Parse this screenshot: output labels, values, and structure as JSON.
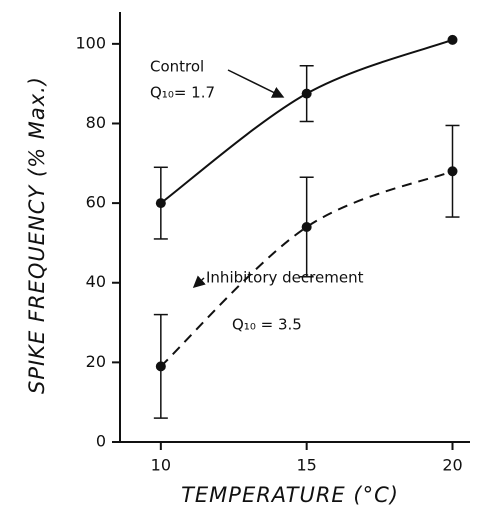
{
  "chart_data": {
    "type": "line",
    "x_label": "TEMPERATURE (°C)",
    "y_label": "SPIKE FREQUENCY (% Max.)",
    "x": [
      10,
      15,
      20
    ],
    "series": [
      {
        "name": "Control",
        "q10_label": "Q₁₀= 1.7",
        "color": "#111111",
        "dash": false,
        "values": [
          60,
          87.5,
          101
        ],
        "errors": [
          9,
          7,
          null
        ]
      },
      {
        "name": "Inhibitory decrement",
        "q10_label": "Q₁₀ = 3.5",
        "color": "#111111",
        "dash": true,
        "values": [
          19,
          54,
          68
        ],
        "errors": [
          13,
          12.5,
          11.5
        ]
      }
    ],
    "xlim": [
      8.6,
      20.6
    ],
    "ylim": [
      0,
      108
    ],
    "xticks": [
      10,
      15,
      20
    ],
    "yticks": [
      0,
      20,
      40,
      60,
      80,
      100
    ]
  }
}
